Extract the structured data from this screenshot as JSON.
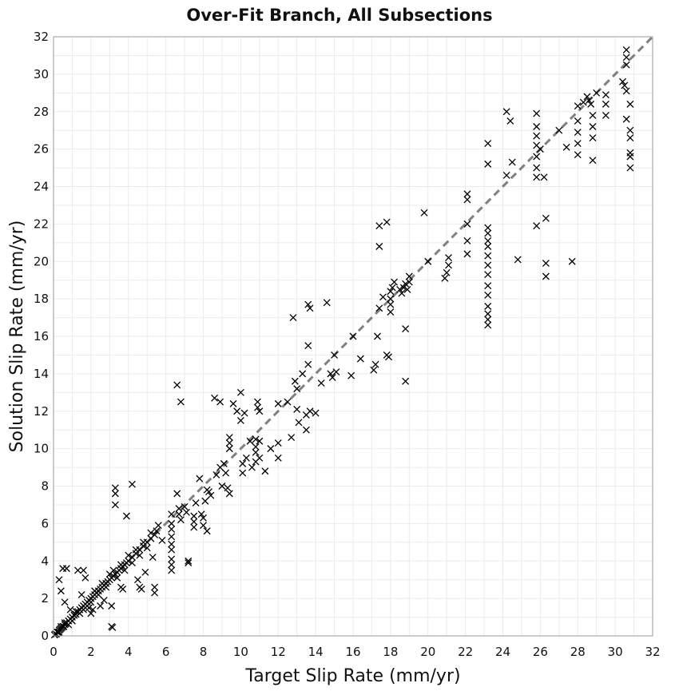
{
  "chart_data": {
    "type": "scatter",
    "title": "Over-Fit Branch, All Subsections",
    "xlabel": "Target Slip Rate (mm/yr)",
    "ylabel": "Solution Slip Rate (mm/yr)",
    "xlim": [
      0,
      32
    ],
    "ylim": [
      0,
      32
    ],
    "xticks": [
      0,
      2,
      4,
      6,
      8,
      10,
      12,
      14,
      16,
      18,
      20,
      22,
      24,
      26,
      28,
      30,
      32
    ],
    "yticks": [
      0,
      2,
      4,
      6,
      8,
      10,
      12,
      14,
      16,
      18,
      20,
      22,
      24,
      26,
      28,
      30,
      32
    ],
    "grid": true,
    "marker": "x",
    "marker_color": "#000000",
    "reference_line": {
      "from": [
        0,
        0
      ],
      "to": [
        32,
        32
      ],
      "style": "dashed",
      "color": "#808080"
    },
    "series": [
      {
        "points": [
          [
            0.05,
            0.05
          ],
          [
            0.1,
            0.1
          ],
          [
            0.15,
            0.1
          ],
          [
            0.2,
            0.2
          ],
          [
            0.25,
            0.2
          ],
          [
            0.3,
            0.3
          ],
          [
            0.35,
            0.35
          ],
          [
            0.4,
            0.4
          ],
          [
            0.45,
            0.45
          ],
          [
            0.5,
            0.5
          ],
          [
            0.55,
            0.5
          ],
          [
            0.6,
            0.6
          ],
          [
            0.65,
            0.65
          ],
          [
            0.7,
            0.7
          ],
          [
            0.8,
            0.8
          ],
          [
            0.9,
            0.9
          ],
          [
            1.0,
            1.0
          ],
          [
            1.1,
            1.1
          ],
          [
            1.2,
            1.15
          ],
          [
            1.3,
            1.3
          ],
          [
            1.4,
            1.4
          ],
          [
            1.5,
            1.5
          ],
          [
            1.6,
            1.6
          ],
          [
            1.7,
            1.7
          ],
          [
            1.8,
            1.8
          ],
          [
            1.9,
            1.9
          ],
          [
            2.0,
            2.0
          ],
          [
            2.1,
            2.1
          ],
          [
            2.2,
            2.2
          ],
          [
            2.3,
            2.3
          ],
          [
            2.4,
            2.4
          ],
          [
            2.5,
            2.5
          ],
          [
            2.6,
            2.6
          ],
          [
            2.7,
            2.7
          ],
          [
            2.8,
            2.8
          ],
          [
            2.9,
            2.9
          ],
          [
            3.0,
            3.0
          ],
          [
            3.1,
            3.1
          ],
          [
            3.2,
            3.2
          ],
          [
            3.3,
            3.3
          ],
          [
            3.4,
            3.4
          ],
          [
            3.5,
            3.5
          ],
          [
            3.6,
            3.6
          ],
          [
            3.7,
            3.7
          ],
          [
            3.8,
            3.8
          ],
          [
            3.9,
            3.9
          ],
          [
            4.0,
            4.0
          ],
          [
            4.2,
            4.2
          ],
          [
            4.4,
            4.4
          ],
          [
            4.6,
            4.6
          ],
          [
            4.8,
            4.8
          ],
          [
            5.0,
            5.0
          ],
          [
            5.2,
            5.2
          ],
          [
            5.4,
            5.4
          ],
          [
            0.3,
            0.2
          ],
          [
            0.4,
            0.5
          ],
          [
            0.6,
            0.7
          ],
          [
            0.8,
            0.6
          ],
          [
            1.0,
            0.8
          ],
          [
            1.2,
            1.3
          ],
          [
            1.4,
            1.2
          ],
          [
            1.6,
            1.4
          ],
          [
            1.8,
            1.6
          ],
          [
            2.0,
            1.8
          ],
          [
            2.2,
            2.4
          ],
          [
            2.4,
            2.2
          ],
          [
            2.6,
            2.8
          ],
          [
            2.8,
            2.6
          ],
          [
            3.0,
            3.3
          ],
          [
            3.2,
            3.5
          ],
          [
            3.4,
            3.1
          ],
          [
            3.6,
            3.8
          ],
          [
            3.8,
            3.5
          ],
          [
            4.0,
            4.3
          ],
          [
            4.2,
            3.9
          ],
          [
            4.4,
            4.6
          ],
          [
            4.6,
            4.3
          ],
          [
            4.8,
            5.0
          ],
          [
            5.0,
            4.7
          ],
          [
            5.2,
            5.5
          ],
          [
            0.3,
            3.0
          ],
          [
            0.4,
            2.4
          ],
          [
            0.5,
            3.6
          ],
          [
            0.7,
            3.6
          ],
          [
            0.6,
            1.8
          ],
          [
            0.9,
            1.4
          ],
          [
            1.3,
            3.5
          ],
          [
            1.6,
            3.5
          ],
          [
            1.7,
            3.1
          ],
          [
            1.5,
            2.2
          ],
          [
            2.1,
            1.4
          ],
          [
            2.0,
            1.2
          ],
          [
            1.9,
            1.5
          ],
          [
            2.5,
            1.6
          ],
          [
            2.7,
            1.9
          ],
          [
            3.1,
            0.5
          ],
          [
            3.15,
            0.45
          ],
          [
            3.3,
            7.9
          ],
          [
            3.3,
            7.6
          ],
          [
            3.3,
            7.0
          ],
          [
            3.9,
            6.4
          ],
          [
            4.2,
            8.1
          ],
          [
            3.1,
            1.6
          ],
          [
            3.6,
            2.6
          ],
          [
            3.7,
            2.5
          ],
          [
            4.6,
            2.6
          ],
          [
            4.7,
            2.5
          ],
          [
            5.4,
            2.6
          ],
          [
            5.4,
            2.3
          ],
          [
            4.5,
            3.0
          ],
          [
            4.9,
            3.4
          ],
          [
            5.3,
            4.2
          ],
          [
            5.5,
            5.6
          ],
          [
            5.6,
            5.9
          ],
          [
            5.8,
            5.1
          ],
          [
            6.3,
            6.5
          ],
          [
            6.3,
            6.0
          ],
          [
            6.3,
            5.7
          ],
          [
            6.3,
            5.3
          ],
          [
            6.3,
            4.9
          ],
          [
            6.3,
            4.6
          ],
          [
            6.3,
            4.1
          ],
          [
            6.3,
            3.8
          ],
          [
            6.3,
            3.5
          ],
          [
            6.6,
            7.6
          ],
          [
            6.7,
            6.8
          ],
          [
            6.7,
            6.5
          ],
          [
            6.8,
            6.2
          ],
          [
            7.0,
            6.9
          ],
          [
            7.1,
            6.6
          ],
          [
            7.2,
            4.0
          ],
          [
            7.2,
            3.9
          ],
          [
            7.5,
            6.4
          ],
          [
            7.5,
            6.1
          ],
          [
            7.5,
            5.8
          ],
          [
            7.6,
            7.1
          ],
          [
            7.8,
            8.4
          ],
          [
            7.9,
            6.5
          ],
          [
            8.0,
            6.3
          ],
          [
            8.0,
            5.9
          ],
          [
            8.2,
            5.6
          ],
          [
            8.1,
            7.2
          ],
          [
            8.2,
            7.8
          ],
          [
            8.3,
            7.7
          ],
          [
            8.4,
            7.5
          ],
          [
            6.6,
            13.4
          ],
          [
            6.8,
            12.5
          ],
          [
            8.6,
            12.7
          ],
          [
            8.9,
            12.5
          ],
          [
            8.9,
            9.0
          ],
          [
            8.7,
            8.6
          ],
          [
            9.0,
            8.0
          ],
          [
            9.1,
            9.2
          ],
          [
            9.2,
            8.7
          ],
          [
            9.3,
            7.9
          ],
          [
            9.4,
            7.6
          ],
          [
            9.4,
            10.3
          ],
          [
            9.4,
            10.6
          ],
          [
            9.4,
            10.0
          ],
          [
            9.6,
            12.4
          ],
          [
            9.8,
            12.0
          ],
          [
            10.0,
            13.0
          ],
          [
            10.1,
            9.2
          ],
          [
            10.1,
            8.7
          ],
          [
            10.0,
            11.5
          ],
          [
            10.2,
            11.9
          ],
          [
            10.3,
            9.5
          ],
          [
            10.5,
            10.4
          ],
          [
            10.6,
            9.0
          ],
          [
            10.8,
            10.5
          ],
          [
            10.8,
            10.1
          ],
          [
            10.8,
            9.8
          ],
          [
            10.8,
            9.3
          ],
          [
            10.9,
            12.5
          ],
          [
            10.9,
            12.2
          ],
          [
            11.0,
            12.0
          ],
          [
            11.0,
            10.4
          ],
          [
            11.0,
            9.5
          ],
          [
            11.3,
            8.8
          ],
          [
            11.6,
            10.0
          ],
          [
            12.0,
            10.3
          ],
          [
            12.0,
            9.5
          ],
          [
            12.0,
            12.4
          ],
          [
            12.7,
            10.6
          ],
          [
            12.8,
            17.0
          ],
          [
            12.9,
            13.6
          ],
          [
            13.0,
            13.2
          ],
          [
            13.0,
            12.1
          ],
          [
            13.1,
            11.4
          ],
          [
            13.3,
            14.0
          ],
          [
            13.5,
            11.0
          ],
          [
            13.6,
            17.7
          ],
          [
            13.7,
            17.5
          ],
          [
            13.6,
            15.5
          ],
          [
            13.6,
            14.5
          ],
          [
            13.7,
            12.0
          ],
          [
            13.5,
            11.8
          ],
          [
            14.0,
            11.9
          ],
          [
            14.3,
            13.5
          ],
          [
            14.6,
            17.8
          ],
          [
            14.8,
            14.0
          ],
          [
            14.9,
            13.8
          ],
          [
            15.1,
            14.1
          ],
          [
            15.9,
            13.9
          ],
          [
            16.4,
            14.8
          ],
          [
            17.1,
            14.2
          ],
          [
            17.2,
            14.5
          ],
          [
            17.3,
            16.0
          ],
          [
            17.4,
            17.5
          ],
          [
            17.4,
            20.8
          ],
          [
            17.4,
            21.9
          ],
          [
            17.8,
            22.1
          ],
          [
            17.6,
            18.1
          ],
          [
            17.8,
            15.0
          ],
          [
            17.9,
            14.9
          ],
          [
            18.0,
            18.4
          ],
          [
            18.0,
            18.0
          ],
          [
            18.0,
            17.7
          ],
          [
            18.0,
            17.3
          ],
          [
            18.1,
            18.6
          ],
          [
            18.2,
            18.9
          ],
          [
            18.5,
            18.5
          ],
          [
            18.6,
            18.3
          ],
          [
            18.7,
            18.6
          ],
          [
            18.8,
            18.8
          ],
          [
            18.9,
            18.5
          ],
          [
            19.0,
            18.9
          ],
          [
            19.0,
            19.2
          ],
          [
            18.8,
            16.4
          ],
          [
            18.8,
            13.6
          ],
          [
            19.8,
            22.6
          ],
          [
            20.9,
            19.1
          ],
          [
            21.0,
            19.4
          ],
          [
            21.1,
            19.8
          ],
          [
            21.1,
            20.2
          ],
          [
            22.1,
            23.6
          ],
          [
            22.1,
            23.3
          ],
          [
            22.1,
            22.0
          ],
          [
            22.1,
            21.1
          ],
          [
            22.1,
            20.4
          ],
          [
            23.2,
            21.8
          ],
          [
            23.2,
            21.5
          ],
          [
            23.2,
            21.1
          ],
          [
            23.2,
            20.8
          ],
          [
            23.2,
            20.3
          ],
          [
            23.2,
            19.8
          ],
          [
            23.2,
            19.3
          ],
          [
            23.2,
            18.7
          ],
          [
            23.2,
            18.2
          ],
          [
            23.2,
            17.6
          ],
          [
            23.2,
            17.2
          ],
          [
            23.2,
            16.9
          ],
          [
            23.2,
            16.6
          ],
          [
            23.2,
            26.3
          ],
          [
            23.2,
            25.2
          ],
          [
            24.2,
            28.0
          ],
          [
            24.4,
            27.5
          ],
          [
            24.5,
            25.3
          ],
          [
            24.8,
            20.1
          ],
          [
            25.8,
            27.9
          ],
          [
            25.8,
            27.2
          ],
          [
            25.8,
            26.7
          ],
          [
            25.8,
            26.2
          ],
          [
            25.8,
            25.6
          ],
          [
            25.8,
            25.0
          ],
          [
            25.8,
            24.5
          ],
          [
            25.8,
            21.9
          ],
          [
            26.2,
            24.5
          ],
          [
            26.3,
            22.3
          ],
          [
            26.3,
            19.9
          ],
          [
            26.3,
            19.2
          ],
          [
            27.4,
            26.1
          ],
          [
            27.7,
            20.0
          ],
          [
            28.0,
            28.3
          ],
          [
            28.0,
            27.5
          ],
          [
            28.0,
            26.9
          ],
          [
            28.0,
            26.3
          ],
          [
            28.0,
            25.7
          ],
          [
            28.3,
            28.5
          ],
          [
            28.5,
            28.8
          ],
          [
            28.6,
            28.6
          ],
          [
            28.7,
            28.4
          ],
          [
            28.8,
            27.8
          ],
          [
            28.8,
            27.2
          ],
          [
            28.8,
            26.6
          ],
          [
            28.8,
            25.4
          ],
          [
            29.5,
            28.9
          ],
          [
            29.5,
            28.4
          ],
          [
            29.5,
            27.8
          ],
          [
            30.4,
            29.6
          ],
          [
            30.5,
            29.4
          ],
          [
            30.6,
            31.3
          ],
          [
            30.6,
            30.9
          ],
          [
            30.6,
            30.5
          ],
          [
            30.6,
            29.1
          ],
          [
            30.6,
            27.6
          ],
          [
            30.8,
            28.4
          ],
          [
            30.8,
            27.0
          ],
          [
            30.8,
            26.6
          ],
          [
            30.8,
            25.8
          ],
          [
            30.8,
            25.6
          ],
          [
            30.8,
            25.0
          ],
          [
            24.2,
            24.6
          ],
          [
            26.0,
            26.0
          ],
          [
            27.0,
            27.0
          ],
          [
            29.0,
            29.0
          ],
          [
            20.0,
            20.0
          ],
          [
            16.0,
            16.0
          ],
          [
            15.0,
            15.0
          ],
          [
            12.5,
            12.5
          ]
        ]
      }
    ]
  }
}
